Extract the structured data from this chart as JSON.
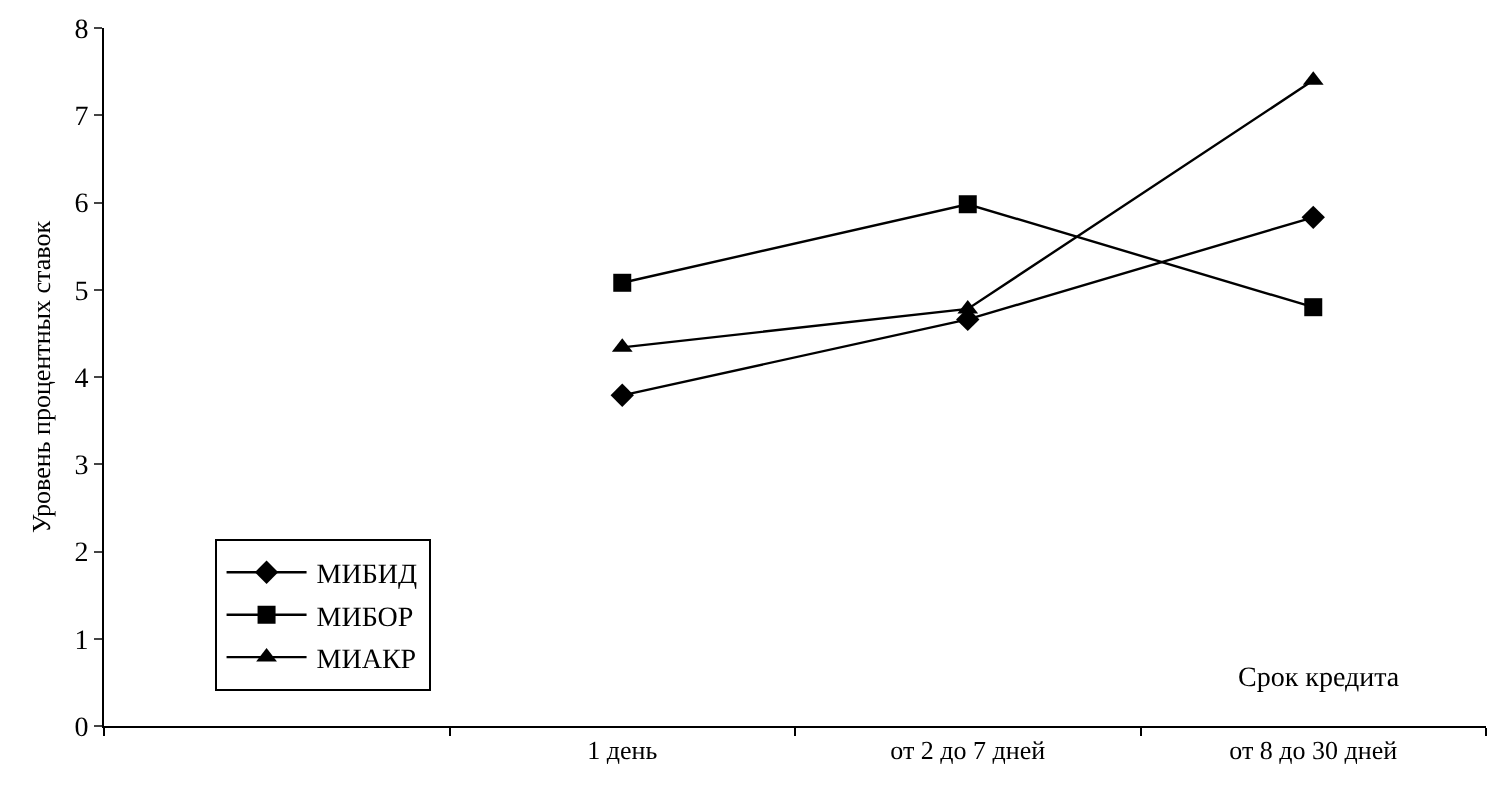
{
  "chart_data": {
    "type": "line",
    "categories": [
      null,
      "1 день",
      "от 2 до 7 дней",
      "от 8 до 30 дней"
    ],
    "series": [
      {
        "name": "МИБИД",
        "color": "#000000",
        "marker": "diamond",
        "values": [
          null,
          3.79,
          4.66,
          5.83
        ]
      },
      {
        "name": "МИБОР",
        "color": "#000000",
        "marker": "square",
        "values": [
          null,
          5.08,
          5.98,
          4.8
        ]
      },
      {
        "name": "МИАКР",
        "color": "#000000",
        "marker": "triangle",
        "values": [
          null,
          4.34,
          4.78,
          7.4
        ]
      }
    ],
    "xlabel": "Срок кредита",
    "ylabel": "Уровень процентных ставок",
    "ylim": [
      0,
      8
    ],
    "yticks": [
      0,
      1,
      2,
      3,
      4,
      5,
      6,
      7,
      8
    ],
    "legend": "bottom left",
    "line_style": "solid"
  }
}
